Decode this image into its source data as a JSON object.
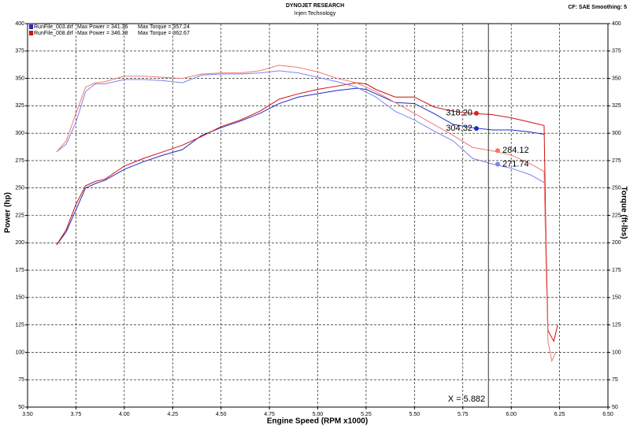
{
  "chart_data": {
    "type": "line",
    "title": "DYNOJET RESEARCH",
    "subtitle": "Injen Technology",
    "settings_text": "CF: SAE  Smoothing: 5",
    "x_label": "Engine Speed (RPM x1000)",
    "y_label": "Power (hp)",
    "y2_label": "Torque (ft-lbs)",
    "legend": [
      {
        "name": "RunFile_003.drf",
        "power": "Max Power = 341.36",
        "torque": "Max Torque = 357.24",
        "color": "#1c2cc0"
      },
      {
        "name": "RunFile_008.drf",
        "power": "Max Power = 346.38",
        "torque": "Max Torque = 362.67",
        "color": "#d01010"
      }
    ],
    "xlim": [
      3.5,
      6.5
    ],
    "xticks": [
      {
        "value": 3.5,
        "label": "3.50"
      },
      {
        "value": 3.75,
        "label": "3.75"
      },
      {
        "value": 4,
        "label": "4.00"
      },
      {
        "value": 4.25,
        "label": "4.25"
      },
      {
        "value": 4.5,
        "label": "4.50"
      },
      {
        "value": 4.75,
        "label": "4.75"
      },
      {
        "value": 5,
        "label": "5.00"
      },
      {
        "value": 5.25,
        "label": "5.25"
      },
      {
        "value": 5.5,
        "label": "5.50"
      },
      {
        "value": 5.75,
        "label": "5.75"
      },
      {
        "value": 6,
        "label": "6.00"
      },
      {
        "value": 6.25,
        "label": "6.25"
      },
      {
        "value": 6.5,
        "label": "6.50"
      }
    ],
    "ylim": [
      50,
      400
    ],
    "yticks": [
      50,
      75,
      100,
      125,
      150,
      175,
      200,
      225,
      250,
      275,
      300,
      325,
      350,
      375,
      400
    ],
    "y2lim": [
      50,
      400
    ],
    "y2ticks": [
      50,
      75,
      100,
      125,
      150,
      175,
      200,
      225,
      250,
      275,
      300,
      325,
      350,
      375,
      400
    ],
    "grid": true,
    "series": [
      {
        "name": "RunFile_003.drf Power",
        "color": "#1c2cc0",
        "x": [
          3.65,
          3.7,
          3.75,
          3.8,
          3.85,
          3.9,
          3.95,
          4.0,
          4.1,
          4.2,
          4.3,
          4.4,
          4.5,
          4.6,
          4.7,
          4.8,
          4.9,
          5.0,
          5.1,
          5.2,
          5.25,
          5.3,
          5.4,
          5.5,
          5.6,
          5.7,
          5.8,
          5.9,
          6.0,
          6.1,
          6.17
        ],
        "values": [
          198,
          210,
          230,
          250,
          254,
          257,
          262,
          267,
          274,
          280,
          285,
          298,
          305,
          311,
          318,
          327,
          333,
          336,
          339,
          341,
          340,
          336,
          328,
          327,
          318,
          308,
          305,
          303,
          303,
          301,
          299
        ]
      },
      {
        "name": "RunFile_008.drf Power",
        "color": "#d01010",
        "x": [
          3.65,
          3.7,
          3.75,
          3.8,
          3.85,
          3.9,
          3.95,
          4.0,
          4.1,
          4.2,
          4.3,
          4.4,
          4.5,
          4.6,
          4.7,
          4.8,
          4.9,
          5.0,
          5.1,
          5.2,
          5.25,
          5.3,
          5.4,
          5.5,
          5.6,
          5.7,
          5.8,
          5.9,
          6.0,
          6.1,
          6.17,
          6.18,
          6.19,
          6.22,
          6.24
        ],
        "values": [
          198,
          212,
          235,
          252,
          256,
          258,
          264,
          270,
          277,
          283,
          289,
          297,
          306,
          312,
          320,
          331,
          336,
          340,
          343,
          346,
          345,
          340,
          333,
          333,
          324,
          320,
          318,
          317,
          314,
          310,
          307,
          200,
          120,
          110,
          125
        ]
      },
      {
        "name": "RunFile_003.drf Torque",
        "color": "#7c84ee",
        "axis": "y2",
        "x": [
          3.65,
          3.7,
          3.75,
          3.8,
          3.85,
          3.9,
          4.0,
          4.1,
          4.2,
          4.3,
          4.4,
          4.5,
          4.6,
          4.7,
          4.8,
          4.9,
          5.0,
          5.1,
          5.2,
          5.3,
          5.4,
          5.5,
          5.6,
          5.7,
          5.8,
          5.9,
          6.0,
          6.1,
          6.17
        ],
        "values": [
          283,
          290,
          310,
          338,
          345,
          345,
          349,
          349,
          348,
          346,
          353,
          354,
          354,
          355,
          357,
          355,
          351,
          347,
          342,
          333,
          320,
          312,
          302,
          293,
          277,
          272,
          268,
          262,
          255
        ]
      },
      {
        "name": "RunFile_008.drf Torque",
        "color": "#f07a72",
        "axis": "y2",
        "x": [
          3.65,
          3.7,
          3.75,
          3.8,
          3.85,
          3.9,
          4.0,
          4.1,
          4.2,
          4.3,
          4.4,
          4.5,
          4.6,
          4.7,
          4.8,
          4.9,
          5.0,
          5.1,
          5.2,
          5.3,
          5.4,
          5.5,
          5.6,
          5.7,
          5.8,
          5.9,
          6.0,
          6.1,
          6.17,
          6.18,
          6.19,
          6.21,
          6.23
        ],
        "values": [
          283,
          293,
          318,
          342,
          346,
          347,
          352,
          352,
          351,
          350,
          354,
          355,
          355,
          357,
          362,
          360,
          356,
          350,
          346,
          338,
          328,
          318,
          308,
          298,
          287,
          284,
          280,
          272,
          265,
          180,
          110,
          92,
          100
        ]
      }
    ],
    "markers": [
      {
        "x": 5.82,
        "value": 318.2,
        "label": "318.20",
        "color": "#e02020",
        "side": "left"
      },
      {
        "x": 5.82,
        "value": 304.32,
        "label": "304.32",
        "color": "#1c2cd0",
        "side": "left"
      },
      {
        "x": 5.93,
        "value": 284.12,
        "label": "284.12",
        "color": "#f07a60",
        "side": "right"
      },
      {
        "x": 5.93,
        "value": 271.74,
        "label": "271.74",
        "color": "#7c84f0",
        "side": "right"
      }
    ],
    "cursor": {
      "x": 5.882,
      "label": "X = 5.882"
    }
  }
}
